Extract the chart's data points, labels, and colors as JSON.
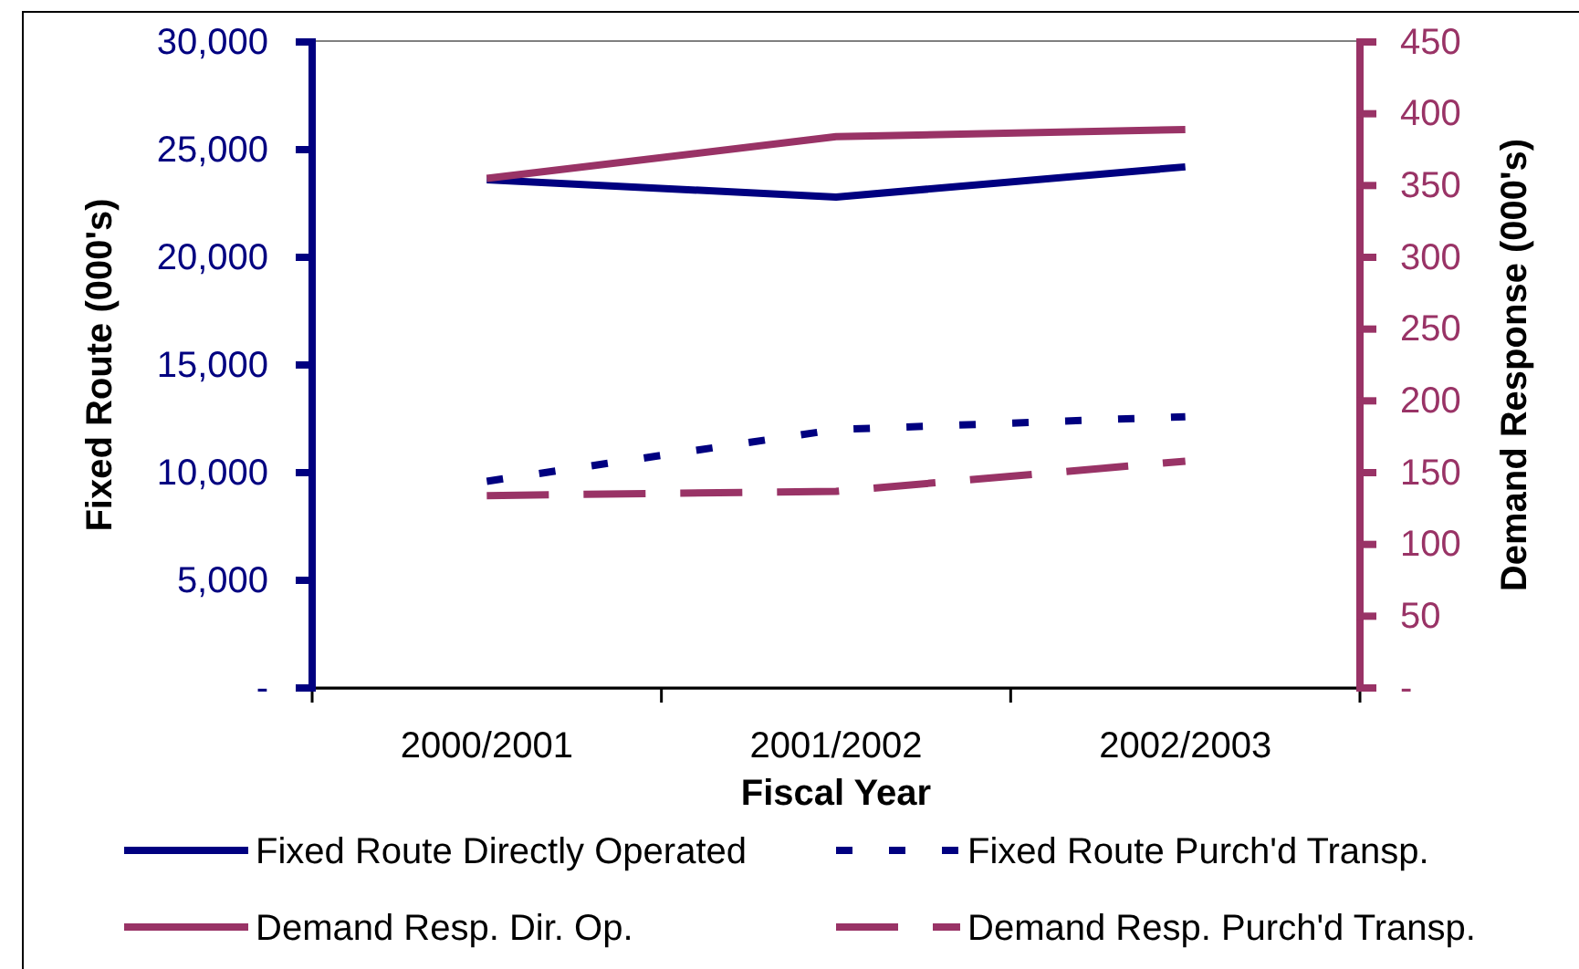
{
  "chart_data": {
    "type": "line",
    "xlabel": "Fiscal Year",
    "ylabel": "Fixed Route (000's)",
    "y2label": "Demand Response (000's)",
    "categories": [
      "2000/2001",
      "2001/2002",
      "2002/2003"
    ],
    "series": [
      {
        "name": "Fixed Route Directly Operated",
        "color": "#000080",
        "values": [
          23600,
          22800,
          24200
        ],
        "line_style": "solid"
      },
      {
        "name": "Fixed Route Purch'd Transp.",
        "color": "#000080",
        "values": [
          9600,
          12000,
          12600
        ],
        "line_style": "dotted"
      },
      {
        "name": "Demand Resp. Dir. Op.",
        "color": "#993366",
        "values": [
          355,
          384,
          389
        ],
        "axis": "y2",
        "line_style": "solid"
      },
      {
        "name": "Demand Resp. Purch'd Transp.",
        "color": "#993366",
        "values": [
          134,
          137,
          158
        ],
        "axis": "y2",
        "line_style": "dashed"
      }
    ],
    "ylim": [
      0,
      30000
    ],
    "yticks": [
      {
        "value": 0,
        "label": "-"
      },
      {
        "value": 5000,
        "label": "5,000"
      },
      {
        "value": 10000,
        "label": "10,000"
      },
      {
        "value": 15000,
        "label": "15,000"
      },
      {
        "value": 20000,
        "label": "20,000"
      },
      {
        "value": 25000,
        "label": "25,000"
      },
      {
        "value": 30000,
        "label": "30,000"
      }
    ],
    "y2lim": [
      0,
      450
    ],
    "y2ticks": [
      {
        "value": 0,
        "label": "-"
      },
      50,
      100,
      150,
      200,
      250,
      300,
      350,
      400,
      450
    ],
    "legend": "bottom"
  }
}
